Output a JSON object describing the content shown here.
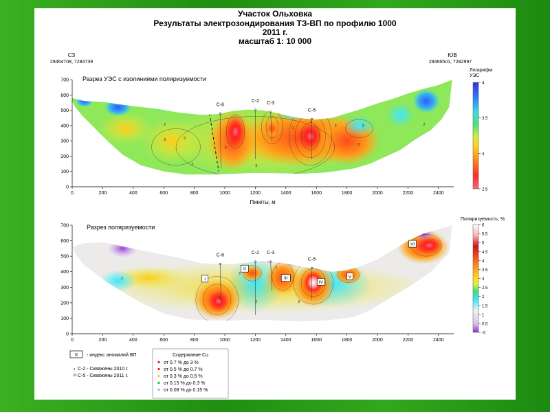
{
  "header": {
    "title_1": "Участок Ольховка",
    "title_2": "Результаты электрозондирования ТЗ-ВП по профилю 1000",
    "title_3": "2011 г.",
    "title_4": "масштаб 1: 10 000"
  },
  "profile_ends": {
    "left_label": "СЗ",
    "left_coords": "29464708, 7284739",
    "right_label": "ЮВ",
    "right_coords": "29466501, 7282997"
  },
  "colors": {
    "background_green": "#2fa51c",
    "ues_scale": [
      "#ff6680",
      "#ff3030",
      "#ff8c1a",
      "#ffd21a",
      "#c8f03c",
      "#50e07a",
      "#3adce0",
      "#2b7bff",
      "#3b2fd8"
    ],
    "pol_scale": [
      "#8b2fd8",
      "#d8c6e8",
      "#f0f0f0",
      "#3ee8ff",
      "#3fe07a",
      "#e6ef3a",
      "#ffd21a",
      "#ff9a1a",
      "#ff4a1a",
      "#c81a1a",
      "#ffb0b0",
      "#ffffff"
    ]
  },
  "chart_data": [
    {
      "type": "heatmap",
      "title": "Разрез УЭС с изолиниями поляризуемости",
      "xlabel": "Пикеты, м",
      "ylabel": "",
      "xlim": [
        0,
        2500
      ],
      "ylim": [
        0,
        700
      ],
      "x_ticks": [
        0,
        200,
        400,
        600,
        800,
        1000,
        1200,
        1400,
        1600,
        1800,
        2000,
        2200,
        2400
      ],
      "y_ticks": [
        0,
        100,
        200,
        300,
        400,
        500,
        600,
        700
      ],
      "colorbar": {
        "title_1": "Логарифм",
        "title_2": "УЭС",
        "ticks": [
          2.5,
          3,
          3.5,
          4
        ]
      },
      "wells": [
        {
          "name": "С-6",
          "x": 970
        },
        {
          "name": "С-2",
          "x": 1200
        },
        {
          "name": "С-3",
          "x": 1300
        },
        {
          "name": "С-5",
          "x": 1570
        }
      ],
      "isoline_labels": [
        {
          "x": 600,
          "y": 400,
          "text": "2"
        },
        {
          "x": 600,
          "y": 300,
          "text": "3"
        },
        {
          "x": 730,
          "y": 310,
          "text": "3"
        },
        {
          "x": 780,
          "y": 140,
          "text": "3"
        },
        {
          "x": 1000,
          "y": 250,
          "text": "5"
        },
        {
          "x": 1200,
          "y": 130,
          "text": "3"
        },
        {
          "x": 1440,
          "y": 380,
          "text": "1"
        },
        {
          "x": 1560,
          "y": 420,
          "text": "2"
        },
        {
          "x": 1720,
          "y": 390,
          "text": "2"
        },
        {
          "x": 1900,
          "y": 390,
          "text": "2"
        },
        {
          "x": 1870,
          "y": 270,
          "text": "3"
        },
        {
          "x": 2300,
          "y": 400,
          "text": "2"
        }
      ]
    },
    {
      "type": "heatmap",
      "title": "Разрез поляризуемости",
      "xlabel": "",
      "ylabel": "",
      "xlim": [
        0,
        2500
      ],
      "ylim": [
        0,
        700
      ],
      "x_ticks": [
        0,
        200,
        400,
        600,
        800,
        1000,
        1200,
        1400,
        1600,
        1800,
        2000,
        2200,
        2400
      ],
      "y_ticks": [
        0,
        100,
        200,
        300,
        400,
        500,
        600,
        700
      ],
      "colorbar": {
        "title": "Поляризуемость, %",
        "ticks": [
          "-0",
          "0.5",
          "1",
          "1.5",
          "2",
          "2.5",
          "3",
          "3.5",
          "4",
          "4.5",
          "5",
          "5.5",
          "6"
        ]
      },
      "wells": [
        {
          "name": "С-6",
          "x": 970
        },
        {
          "name": "С-2",
          "x": 1200
        },
        {
          "name": "С-3",
          "x": 1300
        },
        {
          "name": "С-5",
          "x": 1570
        }
      ],
      "anomalies": [
        {
          "label": "I",
          "x": 870,
          "y": 355
        },
        {
          "label": "II",
          "x": 1130,
          "y": 420
        },
        {
          "label": "III",
          "x": 1400,
          "y": 360
        },
        {
          "label": "IV",
          "x": 1630,
          "y": 335
        },
        {
          "label": "V",
          "x": 1820,
          "y": 370
        },
        {
          "label": "VI",
          "x": 2230,
          "y": 580
        }
      ],
      "isoline_labels": [
        {
          "x": 1090,
          "y": 380,
          "text": "3"
        },
        {
          "x": 1200,
          "y": 470,
          "text": "2"
        },
        {
          "x": 1280,
          "y": 460,
          "text": "2"
        },
        {
          "x": 1330,
          "y": 420,
          "text": "2"
        },
        {
          "x": 1480,
          "y": 470,
          "text": "3"
        },
        {
          "x": 1570,
          "y": 420,
          "text": "3"
        },
        {
          "x": 1820,
          "y": 420,
          "text": "3"
        },
        {
          "x": 1870,
          "y": 470,
          "text": "2"
        },
        {
          "x": 960,
          "y": 220,
          "text": "3"
        },
        {
          "x": 1200,
          "y": 200,
          "text": "2"
        },
        {
          "x": 1480,
          "y": 200,
          "text": "2"
        },
        {
          "x": 320,
          "y": 350,
          "text": "2"
        }
      ]
    }
  ],
  "legend": {
    "anomaly_index_symbol": "II",
    "anomaly_index_text": "- индекс аномалий ВП",
    "wells_2010": "С-2 - Скважины 2010 г.",
    "wells_2011": "С-5 - Скважины 2011 г.",
    "cu_title": "Содержание Cu",
    "cu_items": [
      {
        "text": "от 0.7 % до  3 %",
        "color": "#e8201a"
      },
      {
        "text": "от 0.5 % до  0.7 %",
        "color": "#e8201a"
      },
      {
        "text": "от 0.3 % до  0.5 %",
        "color": "#e6d820"
      },
      {
        "text": "от 0.15 % до  0.3 %",
        "color": "#2ab84a"
      },
      {
        "text": "от 0.08 % до  0.15 %",
        "color": "#7ab8e6"
      }
    ]
  }
}
